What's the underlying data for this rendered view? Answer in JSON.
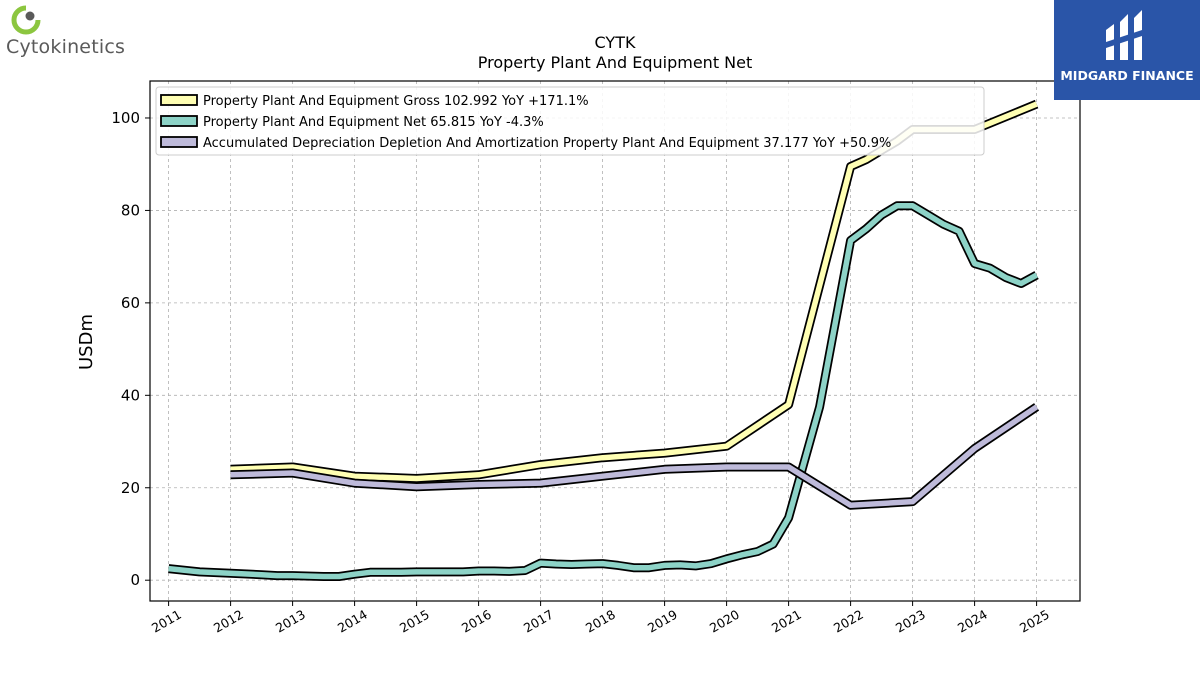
{
  "brand": {
    "company_logo_text": "Cytokinetics",
    "publisher_logo_text": "MIDGARD FINANCE",
    "company_accent": "#8cc63f",
    "publisher_color": "#2a55a8"
  },
  "chart_data": {
    "type": "line",
    "title": "CYTK",
    "subtitle": "Property Plant And Equipment Net",
    "ylabel": "USDm",
    "xlabel": "",
    "xlim": [
      2010.7,
      2025.7
    ],
    "ylim": [
      -4.5,
      108
    ],
    "yticks": [
      0,
      20,
      40,
      60,
      80,
      100
    ],
    "xticks": [
      2011,
      2012,
      2013,
      2014,
      2015,
      2016,
      2017,
      2018,
      2019,
      2020,
      2021,
      2022,
      2023,
      2024,
      2025
    ],
    "grid": true,
    "legend_position": "top-left",
    "series": [
      {
        "name": "Property Plant And Equipment Gross",
        "legend_label": "Property Plant And Equipment Gross  102.992 YoY +171.1%",
        "color": "#ffffb3",
        "x": [
          2012,
          2013,
          2014,
          2015,
          2016,
          2017,
          2018,
          2019,
          2020,
          2021,
          2022,
          2022.25,
          2022.5,
          2022.75,
          2023,
          2023.25,
          2023.5,
          2023.75,
          2024,
          2025
        ],
        "y": [
          24,
          24.5,
          22.5,
          22,
          22.8,
          25,
          26.5,
          27.5,
          29,
          38,
          89.5,
          91,
          93,
          95,
          97.5,
          97.5,
          97.5,
          97.5,
          97.5,
          103
        ]
      },
      {
        "name": "Property Plant And Equipment Net",
        "legend_label": "Property Plant And Equipment Net  65.815 YoY -4.3%",
        "color": "#8dd3c7",
        "x": [
          2011,
          2011.5,
          2012,
          2012.5,
          2012.75,
          2013,
          2013.5,
          2013.75,
          2014,
          2014.25,
          2014.5,
          2014.75,
          2015,
          2015.25,
          2015.5,
          2015.75,
          2016,
          2016.25,
          2016.5,
          2016.75,
          2017,
          2017.25,
          2017.5,
          2017.75,
          2018,
          2018.25,
          2018.5,
          2018.75,
          2019,
          2019.25,
          2019.5,
          2019.75,
          2020,
          2020.25,
          2020.5,
          2020.75,
          2021,
          2021.5,
          2022,
          2022.25,
          2022.5,
          2022.75,
          2023,
          2023.25,
          2023.5,
          2023.75,
          2024,
          2024.25,
          2024.5,
          2024.75,
          2025
        ],
        "y": [
          2.5,
          1.8,
          1.5,
          1.2,
          1.0,
          1.0,
          0.8,
          0.8,
          1.3,
          1.7,
          1.7,
          1.7,
          1.8,
          1.8,
          1.8,
          1.8,
          2.0,
          2.0,
          1.9,
          2.1,
          3.7,
          3.5,
          3.4,
          3.5,
          3.6,
          3.2,
          2.7,
          2.7,
          3.2,
          3.3,
          3.1,
          3.6,
          4.6,
          5.5,
          6.2,
          7.8,
          13.5,
          37.5,
          73.5,
          76,
          79,
          81,
          81,
          79,
          77,
          75.5,
          68.5,
          67.5,
          65.5,
          64.2,
          66
        ]
      },
      {
        "name": "Accumulated Depreciation Depletion And Amortization Property Plant And Equipment",
        "legend_label": "Accumulated Depreciation Depletion And Amortization Property Plant And Equipment  37.177 YoY +50.9%",
        "color": "#bebada",
        "x": [
          2012,
          2013,
          2014,
          2015,
          2016,
          2017,
          2018,
          2019,
          2020,
          2021,
          2022,
          2023,
          2024,
          2025
        ],
        "y": [
          22.8,
          23.2,
          21.0,
          20.2,
          20.7,
          21.0,
          22.5,
          24,
          24.5,
          24.5,
          16.2,
          17,
          28.5,
          37.5
        ]
      }
    ]
  }
}
